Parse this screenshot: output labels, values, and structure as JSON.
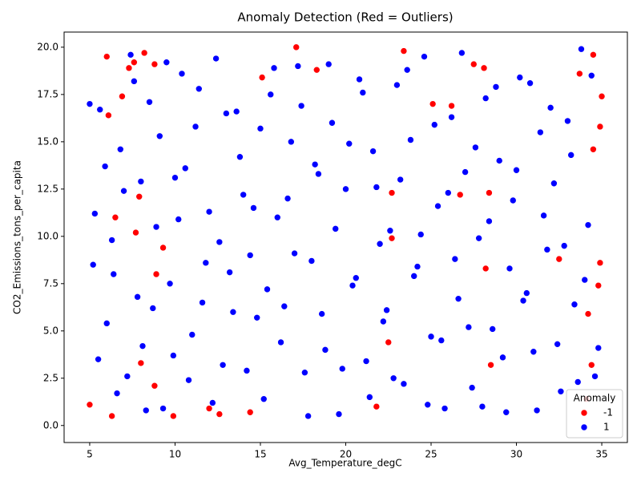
{
  "chart_data": {
    "type": "scatter",
    "title": "Anomaly Detection (Red = Outliers)",
    "x_label": "Avg_Temperature_degC",
    "y_label": "CO2_Emissions_tons_per_capita",
    "xlim": [
      3.5,
      36.5
    ],
    "ylim": [
      -0.9,
      20.8
    ],
    "xticks": [
      5,
      10,
      15,
      20,
      25,
      30,
      35
    ],
    "yticks": [
      {
        "value": 0,
        "label": "0.0"
      },
      2.5,
      {
        "value": 5,
        "label": "5.0"
      },
      7.5,
      {
        "value": 10,
        "label": "10.0"
      },
      12.5,
      {
        "value": 15,
        "label": "15.0"
      },
      17.5,
      {
        "value": 20,
        "label": "20.0"
      }
    ],
    "grid": false,
    "legend_title": "Anomaly",
    "legend_position": "lower right",
    "series": [
      {
        "name": "-1",
        "color": "#ff0000",
        "x": [
          5.0,
          6.0,
          6.1,
          6.3,
          6.5,
          6.9,
          7.3,
          7.6,
          7.7,
          7.9,
          8.0,
          8.2,
          8.8,
          8.8,
          8.9,
          9.3,
          9.9,
          12.0,
          12.6,
          14.4,
          15.1,
          17.1,
          18.3,
          21.8,
          22.5,
          22.7,
          22.7,
          23.4,
          25.1,
          26.2,
          26.7,
          27.5,
          28.1,
          28.2,
          28.4,
          28.5,
          32.5,
          33.7,
          34.1,
          34.2,
          34.4,
          34.5,
          34.5,
          34.8,
          34.9,
          34.9,
          35.0
        ],
        "y": [
          1.1,
          19.5,
          16.4,
          0.5,
          11.0,
          17.4,
          18.9,
          19.2,
          10.2,
          12.1,
          3.3,
          19.7,
          19.1,
          2.1,
          8.0,
          9.4,
          0.5,
          0.9,
          0.6,
          0.7,
          18.4,
          20.0,
          18.8,
          1.0,
          4.4,
          12.3,
          9.9,
          19.8,
          17.0,
          16.9,
          12.2,
          19.1,
          18.9,
          8.3,
          12.3,
          3.2,
          8.8,
          18.6,
          1.4,
          5.9,
          3.2,
          14.6,
          19.6,
          7.4,
          8.6,
          15.8,
          17.4
        ]
      },
      {
        "name": "1",
        "color": "#0000ff",
        "x": [
          5.0,
          5.3,
          5.6,
          6.0,
          6.4,
          6.8,
          7.2,
          7.6,
          8.0,
          8.3,
          8.7,
          9.1,
          9.5,
          9.9,
          10.2,
          10.6,
          11.0,
          11.4,
          11.8,
          12.2,
          12.6,
          13.0,
          13.4,
          13.8,
          14.2,
          14.6,
          15.0,
          15.4,
          15.8,
          16.2,
          16.6,
          17.0,
          17.4,
          17.8,
          18.2,
          18.6,
          19.0,
          19.4,
          19.8,
          20.2,
          20.6,
          21.0,
          21.4,
          21.8,
          22.2,
          22.6,
          23.0,
          23.4,
          23.8,
          24.2,
          24.6,
          25.0,
          25.4,
          25.8,
          26.2,
          26.6,
          27.0,
          27.4,
          27.8,
          28.2,
          28.6,
          29.0,
          29.4,
          29.8,
          30.2,
          30.6,
          31.0,
          31.4,
          31.8,
          32.2,
          32.6,
          33.0,
          33.4,
          33.8,
          34.2,
          34.6,
          5.2,
          5.5,
          5.9,
          6.3,
          6.6,
          7.0,
          7.4,
          7.8,
          8.1,
          8.5,
          8.9,
          9.3,
          9.7,
          10.0,
          10.4,
          10.8,
          11.2,
          11.6,
          12.0,
          12.4,
          12.8,
          13.2,
          13.6,
          14.0,
          14.4,
          14.8,
          15.2,
          15.6,
          16.0,
          16.4,
          16.8,
          17.2,
          17.6,
          18.0,
          18.4,
          18.8,
          19.2,
          19.6,
          20.0,
          20.4,
          20.8,
          21.2,
          21.6,
          22.0,
          22.4,
          22.8,
          23.2,
          23.6,
          24.0,
          24.4,
          24.8,
          25.2,
          25.6,
          26.0,
          26.4,
          26.8,
          27.2,
          27.6,
          28.0,
          28.4,
          28.8,
          29.2,
          29.6,
          30.0,
          30.4,
          30.8,
          31.2,
          31.6,
          32.0,
          32.4,
          32.8,
          33.2,
          33.6,
          34.0,
          34.4,
          34.8
        ],
        "y": [
          17.0,
          11.2,
          16.7,
          5.4,
          8.0,
          14.6,
          2.6,
          18.2,
          12.9,
          0.8,
          6.2,
          15.3,
          19.2,
          3.7,
          10.9,
          13.6,
          4.8,
          17.8,
          8.6,
          1.2,
          9.7,
          16.5,
          6.0,
          14.2,
          2.9,
          11.5,
          15.7,
          7.2,
          18.9,
          4.4,
          12.0,
          9.1,
          16.9,
          0.5,
          13.8,
          5.9,
          19.1,
          10.4,
          3.0,
          14.9,
          7.8,
          17.6,
          1.5,
          12.6,
          5.5,
          10.3,
          18.0,
          2.2,
          15.1,
          8.4,
          19.5,
          4.7,
          11.6,
          0.9,
          16.3,
          6.7,
          13.4,
          2.0,
          9.9,
          17.3,
          5.1,
          14.0,
          0.7,
          11.9,
          18.4,
          7.0,
          3.9,
          15.5,
          9.3,
          12.8,
          1.8,
          16.1,
          6.4,
          19.9,
          10.6,
          2.6,
          8.5,
          3.5,
          13.7,
          9.8,
          1.7,
          12.4,
          19.6,
          6.8,
          4.2,
          17.1,
          10.5,
          0.9,
          7.5,
          13.1,
          18.6,
          2.4,
          15.8,
          6.5,
          11.3,
          19.4,
          3.2,
          8.1,
          16.6,
          12.2,
          9.0,
          5.7,
          1.4,
          17.5,
          11.0,
          6.3,
          15.0,
          19.0,
          2.8,
          8.7,
          13.3,
          4.0,
          16.0,
          0.6,
          12.5,
          7.4,
          18.3,
          3.4,
          14.5,
          9.6,
          6.1,
          2.5,
          13.0,
          18.8,
          7.9,
          10.1,
          1.1,
          15.9,
          4.5,
          12.3,
          8.8,
          19.7,
          5.2,
          14.7,
          1.0,
          10.8,
          17.9,
          3.6,
          8.3,
          13.5,
          6.6,
          18.1,
          0.8,
          11.1,
          16.8,
          4.3,
          9.5,
          14.3,
          2.3,
          7.7,
          18.5,
          4.1
        ]
      }
    ]
  }
}
